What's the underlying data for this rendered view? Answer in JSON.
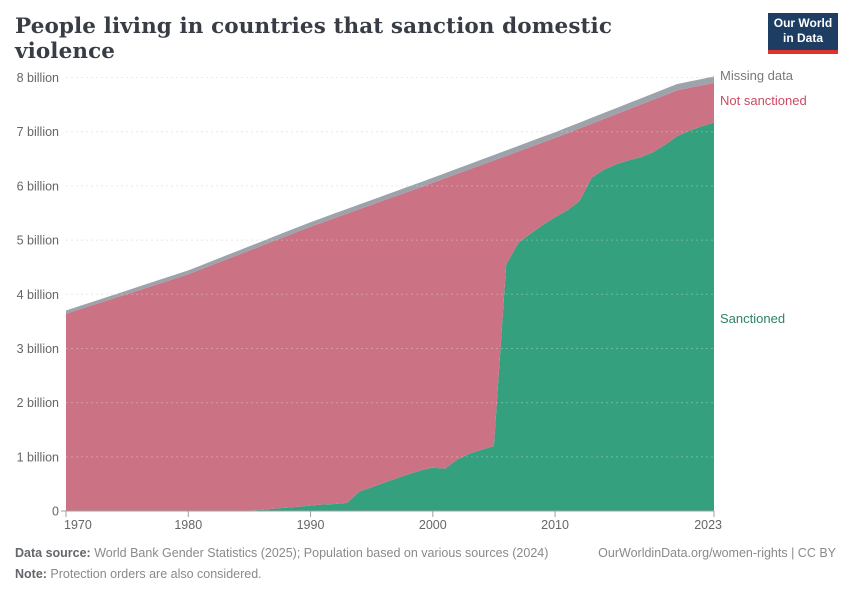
{
  "header": {
    "title": "People living in countries that sanction domestic violence",
    "logo_line1": "Our World",
    "logo_line2": "in Data"
  },
  "legend": {
    "items": [
      {
        "id": "missing",
        "label": "Missing data",
        "color": "#76797c"
      },
      {
        "id": "not-sanctioned",
        "label": "Not sanctioned",
        "color": "#cb4b63"
      },
      {
        "id": "sanctioned",
        "label": "Sanctioned",
        "color": "#2c8465"
      }
    ]
  },
  "colors": {
    "sanctioned_area": "#34a07e",
    "not_sanctioned_area": "#cb7385",
    "missing_area": "#9ca3ab",
    "gridline": "#e2e2e2",
    "axis": "#a0a0a0",
    "tick_text": "#666666",
    "logo_bg": "#1d3d63",
    "logo_red": "#dd352b"
  },
  "chart_data": {
    "type": "area",
    "stacked": true,
    "title": "People living in countries that sanction domestic violence",
    "xlabel": "",
    "ylabel": "",
    "unit": "billion people",
    "grid": true,
    "legend_position": "right",
    "ylim": [
      0,
      8
    ],
    "x_ticks": [
      1970,
      1980,
      1990,
      2000,
      2010,
      2023
    ],
    "y_ticks": [
      {
        "v": 0,
        "label": "0"
      },
      {
        "v": 1,
        "label": "1 billion"
      },
      {
        "v": 2,
        "label": "2 billion"
      },
      {
        "v": 3,
        "label": "3 billion"
      },
      {
        "v": 4,
        "label": "4 billion"
      },
      {
        "v": 5,
        "label": "5 billion"
      },
      {
        "v": 6,
        "label": "6 billion"
      },
      {
        "v": 7,
        "label": "7 billion"
      },
      {
        "v": 8,
        "label": "8 billion"
      }
    ],
    "x": [
      1970,
      1971,
      1972,
      1973,
      1974,
      1975,
      1976,
      1977,
      1978,
      1979,
      1980,
      1981,
      1982,
      1983,
      1984,
      1985,
      1986,
      1987,
      1988,
      1989,
      1990,
      1991,
      1992,
      1993,
      1994,
      1995,
      1996,
      1997,
      1998,
      1999,
      2000,
      2001,
      2002,
      2003,
      2004,
      2005,
      2006,
      2007,
      2008,
      2009,
      2010,
      2011,
      2012,
      2013,
      2014,
      2015,
      2016,
      2017,
      2018,
      2019,
      2020,
      2021,
      2022,
      2023
    ],
    "series": [
      {
        "name": "Sanctioned",
        "color": "#34a07e",
        "values": [
          0,
          0,
          0,
          0,
          0,
          0,
          0,
          0,
          0,
          0,
          0,
          0,
          0,
          0,
          0.005,
          0.01,
          0.02,
          0.04,
          0.06,
          0.08,
          0.1,
          0.12,
          0.13,
          0.15,
          0.36,
          0.44,
          0.52,
          0.6,
          0.68,
          0.75,
          0.8,
          0.78,
          0.95,
          1.06,
          1.13,
          1.2,
          4.55,
          4.95,
          5.12,
          5.28,
          5.42,
          5.55,
          5.72,
          6.15,
          6.3,
          6.4,
          6.47,
          6.53,
          6.62,
          6.76,
          6.92,
          7.02,
          7.1,
          7.17
        ]
      },
      {
        "name": "Not sanctioned",
        "color": "#cb7385",
        "values": [
          3.64,
          3.713,
          3.786,
          3.859,
          3.931,
          4.004,
          4.077,
          4.15,
          4.223,
          4.296,
          4.369,
          4.457,
          4.544,
          4.632,
          4.715,
          4.798,
          4.876,
          4.944,
          5.012,
          5.079,
          5.147,
          5.208,
          5.279,
          5.34,
          5.211,
          5.212,
          5.213,
          5.213,
          5.214,
          5.225,
          5.256,
          5.359,
          5.272,
          5.245,
          5.258,
          5.27,
          2.003,
          1.686,
          1.599,
          1.522,
          1.465,
          1.423,
          1.34,
          0.998,
          0.936,
          0.924,
          0.942,
          0.97,
          0.968,
          0.916,
          0.843,
          0.789,
          0.754,
          0.73
        ]
      },
      {
        "name": "Missing data",
        "color": "#9ca3ab",
        "values": [
          0.06,
          0.061,
          0.062,
          0.063,
          0.065,
          0.066,
          0.067,
          0.068,
          0.069,
          0.07,
          0.071,
          0.072,
          0.074,
          0.075,
          0.076,
          0.077,
          0.078,
          0.079,
          0.08,
          0.082,
          0.083,
          0.084,
          0.085,
          0.086,
          0.087,
          0.088,
          0.089,
          0.091,
          0.092,
          0.093,
          0.094,
          0.095,
          0.096,
          0.097,
          0.098,
          0.1,
          0.101,
          0.102,
          0.103,
          0.104,
          0.105,
          0.106,
          0.108,
          0.109,
          0.11,
          0.111,
          0.112,
          0.113,
          0.114,
          0.115,
          0.117,
          0.118,
          0.119,
          0.12
        ]
      }
    ]
  },
  "footer": {
    "data_source_label": "Data source:",
    "data_source_text": " World Bank Gender Statistics (2025); Population based on various sources (2024)",
    "note_label": "Note:",
    "note_text": " Protection orders are also considered.",
    "link": "OurWorldinData.org/women-rights | CC BY"
  }
}
